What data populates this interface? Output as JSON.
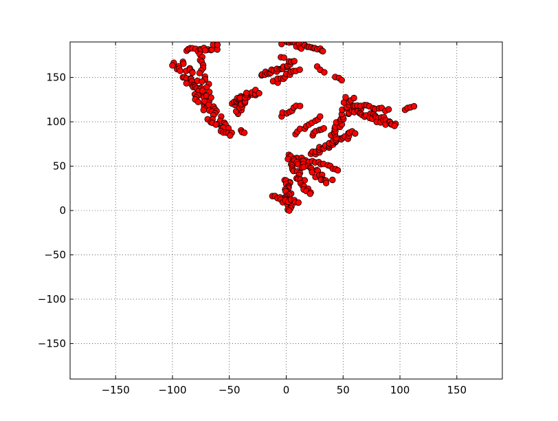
{
  "chart_data": {
    "type": "scatter",
    "title": "",
    "xlabel": "",
    "ylabel": "",
    "xlim": [
      -190,
      190
    ],
    "ylim": [
      -190,
      190
    ],
    "grid": true,
    "x_ticks": [
      -150,
      -100,
      -50,
      0,
      50,
      100,
      150
    ],
    "y_ticks": [
      -150,
      -100,
      -50,
      0,
      50,
      100,
      150
    ],
    "x_tick_labels": [
      "−150",
      "−100",
      "−50",
      "0",
      "50",
      "100",
      "150"
    ],
    "y_tick_labels": [
      "−150",
      "−100",
      "−50",
      "0",
      "50",
      "100",
      "150"
    ],
    "marker_color": "#ff0000",
    "marker_edge_color": "#000000",
    "background_color": "#ffffff",
    "clusters": [
      {
        "start": [
          -95,
          168
        ],
        "end": [
          -52,
          84
        ],
        "width": 12,
        "count": 70
      },
      {
        "start": [
          -87,
          180
        ],
        "end": [
          -60,
          185
        ],
        "width": 6,
        "count": 16
      },
      {
        "start": [
          -75,
          180
        ],
        "end": [
          -68,
          120
        ],
        "width": 8,
        "count": 20
      },
      {
        "start": [
          -48,
          121
        ],
        "end": [
          -25,
          134
        ],
        "width": 6,
        "count": 22
      },
      {
        "start": [
          -44,
          110
        ],
        "end": [
          -35,
          132
        ],
        "width": 6,
        "count": 12
      },
      {
        "start": [
          -40,
          90
        ],
        "end": [
          -38,
          87
        ],
        "width": 2,
        "count": 3
      },
      {
        "start": [
          -22,
          152
        ],
        "end": [
          8,
          168
        ],
        "width": 5,
        "count": 22
      },
      {
        "start": [
          -10,
          144
        ],
        "end": [
          10,
          160
        ],
        "width": 5,
        "count": 12
      },
      {
        "start": [
          -5,
          172
        ],
        "end": [
          -2,
          173
        ],
        "width": 1,
        "count": 2
      },
      {
        "start": [
          -5,
          191
        ],
        "end": [
          32,
          178
        ],
        "width": 6,
        "count": 22
      },
      {
        "start": [
          28,
          162
        ],
        "end": [
          33,
          156
        ],
        "width": 2,
        "count": 3
      },
      {
        "start": [
          43,
          151
        ],
        "end": [
          48,
          147
        ],
        "width": 1,
        "count": 3
      },
      {
        "start": [
          -5,
          107
        ],
        "end": [
          12,
          118
        ],
        "width": 3,
        "count": 8
      },
      {
        "start": [
          8,
          87
        ],
        "end": [
          30,
          106
        ],
        "width": 3,
        "count": 10
      },
      {
        "start": [
          22,
          86
        ],
        "end": [
          32,
          94
        ],
        "width": 3,
        "count": 6
      },
      {
        "start": [
          22,
          64
        ],
        "end": [
          60,
          88
        ],
        "width": 5,
        "count": 28
      },
      {
        "start": [
          40,
          75
        ],
        "end": [
          57,
          128
        ],
        "width": 8,
        "count": 30
      },
      {
        "start": [
          58,
          115
        ],
        "end": [
          96,
          96
        ],
        "width": 8,
        "count": 32
      },
      {
        "start": [
          60,
          120
        ],
        "end": [
          90,
          114
        ],
        "width": 4,
        "count": 12
      },
      {
        "start": [
          104,
          113
        ],
        "end": [
          112,
          117
        ],
        "width": 3,
        "count": 4
      },
      {
        "start": [
          2,
          62
        ],
        "end": [
          46,
          46
        ],
        "width": 3,
        "count": 18
      },
      {
        "start": [
          2,
          60
        ],
        "end": [
          20,
          18
        ],
        "width": 6,
        "count": 24
      },
      {
        "start": [
          10,
          55
        ],
        "end": [
          38,
          32
        ],
        "width": 8,
        "count": 22
      },
      {
        "start": [
          0,
          35
        ],
        "end": [
          3,
          0
        ],
        "width": 7,
        "count": 26
      },
      {
        "start": [
          -12,
          15
        ],
        "end": [
          10,
          8
        ],
        "width": 5,
        "count": 12
      }
    ]
  }
}
